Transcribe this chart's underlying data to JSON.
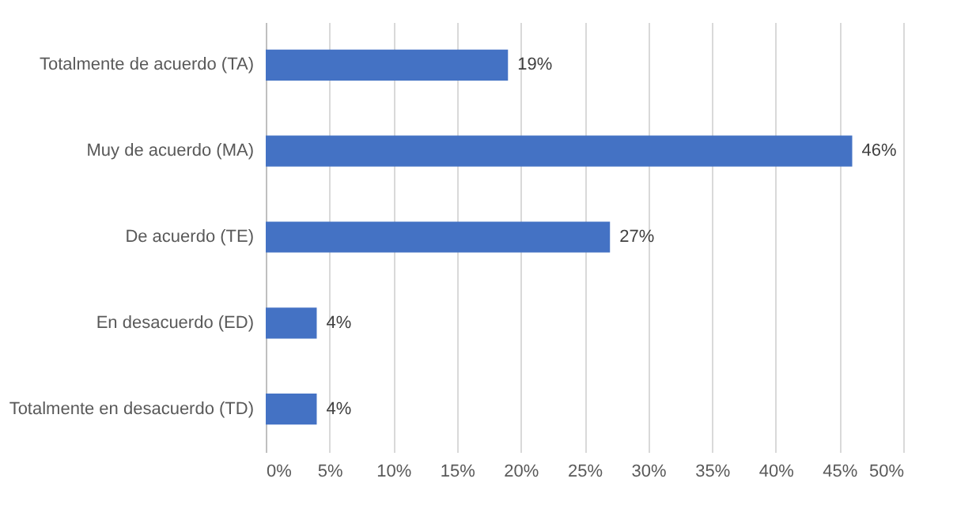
{
  "chart_data": {
    "type": "bar",
    "orientation": "horizontal",
    "categories": [
      "Totalmente de acuerdo (TA)",
      "Muy de acuerdo (MA)",
      "De acuerdo (TE)",
      "En desacuerdo (ED)",
      "Totalmente en desacuerdo (TD)"
    ],
    "values": [
      19,
      46,
      27,
      4,
      4
    ],
    "color": "#4472c4",
    "value_labels": [
      "19%",
      "46%",
      "27%",
      "4%",
      "4%"
    ],
    "xlim": [
      0,
      50
    ],
    "xticks": [
      {
        "value": 0,
        "label": "0%"
      },
      {
        "value": 5,
        "label": "5%"
      },
      {
        "value": 10,
        "label": "10%"
      },
      {
        "value": 15,
        "label": "15%"
      },
      {
        "value": 20,
        "label": "20%"
      },
      {
        "value": 25,
        "label": "25%"
      },
      {
        "value": 30,
        "label": "30%"
      },
      {
        "value": 35,
        "label": "35%"
      },
      {
        "value": 40,
        "label": "40%"
      },
      {
        "value": 45,
        "label": "45%"
      },
      {
        "value": 50,
        "label": "50%"
      }
    ],
    "grid": "x"
  }
}
